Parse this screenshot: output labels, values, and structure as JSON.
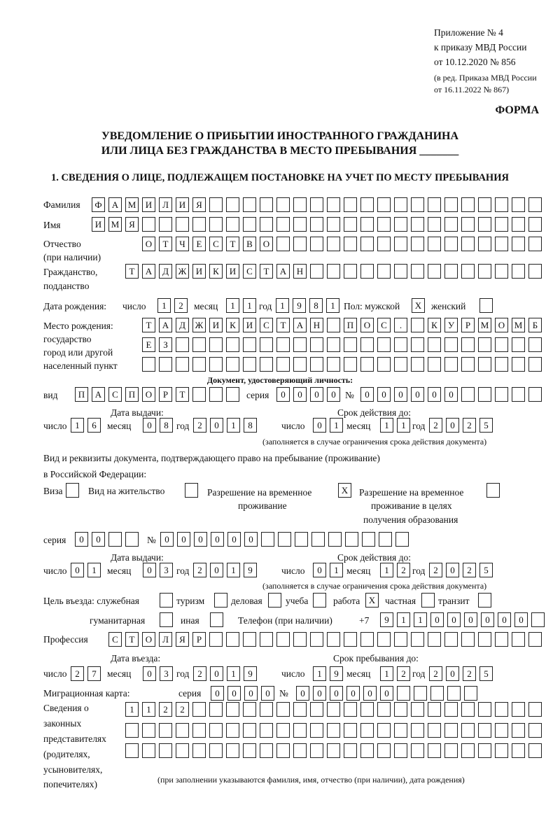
{
  "header": {
    "line1": "Приложение № 4",
    "line2": "к приказу МВД России",
    "line3": "от 10.12.2020 № 856",
    "line4": "(в ред. Приказа МВД России",
    "line5": "от 16.11.2022 № 867)",
    "form": "ФОРМА"
  },
  "title": {
    "line1": "УВЕДОМЛЕНИЕ О ПРИБЫТИИ ИНОСТРАННОГО ГРАЖДАНИНА",
    "line2": "ИЛИ ЛИЦА БЕЗ ГРАЖДАНСТВА В МЕСТО ПРЕБЫВАНИЯ _______"
  },
  "section1": "1. СВЕДЕНИЯ О ЛИЦЕ, ПОДЛЕЖАЩЕМ ПОСТАНОВКЕ НА УЧЕТ ПО МЕСТУ ПРЕБЫВАНИЯ",
  "labels": {
    "surname": "Фамилия",
    "name": "Имя",
    "patronymic1": "Отчество",
    "patronymic2": "(при наличии)",
    "citizenship1": "Гражданство,",
    "citizenship2": "подданство",
    "birth_date": "Дата рождения:",
    "day": "число",
    "month": "месяц",
    "year": "год",
    "sex": "Пол: мужской",
    "female": "женский",
    "birthplace1": "Место рождения:",
    "birthplace2": "государство",
    "birthplace3": "город или другой",
    "birthplace4": "населенный пункт",
    "id_doc": "Документ, удостоверяющий личность:",
    "kind": "вид",
    "series": "серия",
    "number": "№",
    "issue_date": "Дата выдачи:",
    "valid_until": "Срок действия до:",
    "valid_note": "(заполняется в случае ограничения срока действия документа)",
    "stay_doc1": "Вид и реквизиты документа, подтверждающего право на пребывание (проживание)",
    "stay_doc2": "в Российской Федерации:",
    "visa": "Виза",
    "residence": "Вид на жительство",
    "temp1": "Разрешение на временное",
    "temp2": "проживание",
    "edu1": "Разрешение на временное",
    "edu2": "проживание в целях",
    "edu3": "получения образования",
    "purpose": "Цель въезда: служебная",
    "tourism": "туризм",
    "business": "деловая",
    "study": "учеба",
    "work": "работа",
    "private": "частная",
    "transit": "транзит",
    "humanitarian": "гуманитарная",
    "other": "иная",
    "phone": "Телефон (при наличии)",
    "phone_prefix": "+7",
    "profession": "Профессия",
    "entry_date": "Дата въезда:",
    "stay_until": "Срок пребывания до:",
    "migration_card": "Миграционная карта:",
    "rep1": "Сведения о",
    "rep2": "законных",
    "rep3": "представителях",
    "rep4": "(родителях,",
    "rep5": "усыновителях,",
    "rep6": "попечителях)",
    "rep_note": "(при заполнении указываются фамилия, имя, отчество (при наличии), дата рождения)"
  },
  "values": {
    "surname": "ФАМИЛИЯ",
    "name": "ИМЯ",
    "patronymic": "ОТЧЕСТВО",
    "citizenship": "ТАДЖИКИСТАН",
    "birth_day": "12",
    "birth_month": "11",
    "birth_year": "1981",
    "male": "X",
    "female": "",
    "birthplace1": "ТАДЖИКИСТАН ПОС. КУРМОМБ",
    "birthplace2": "ЕЗ",
    "birthplace3": "",
    "doc_kind": "ПАСПОРТ",
    "doc_series": "0000",
    "doc_number": "000000",
    "doc_issue_day": "16",
    "doc_issue_month": "08",
    "doc_issue_year": "2018",
    "doc_valid_day": "01",
    "doc_valid_month": "11",
    "doc_valid_year": "2025",
    "visa": "",
    "residence": "",
    "temp_residence": "X",
    "temp_edu": "",
    "stay_series": "00",
    "stay_number": "000000",
    "stay_issue_day": "01",
    "stay_issue_month": "03",
    "stay_issue_year": "2019",
    "stay_valid_day": "01",
    "stay_valid_month": "12",
    "stay_valid_year": "2025",
    "p_service": "",
    "p_tourism": "",
    "p_business": "",
    "p_study": "",
    "p_work": "X",
    "p_private": "",
    "p_transit": "",
    "p_humanitarian": "",
    "p_other": "",
    "phone": "911000000",
    "profession": "СТОЛЯР",
    "entry_day": "27",
    "entry_month": "03",
    "entry_year": "2019",
    "until_day": "19",
    "until_month": "12",
    "until_year": "2025",
    "mc_series": "0000",
    "mc_number": "000000",
    "rep1": "1122",
    "rep2": "",
    "rep3": ""
  }
}
